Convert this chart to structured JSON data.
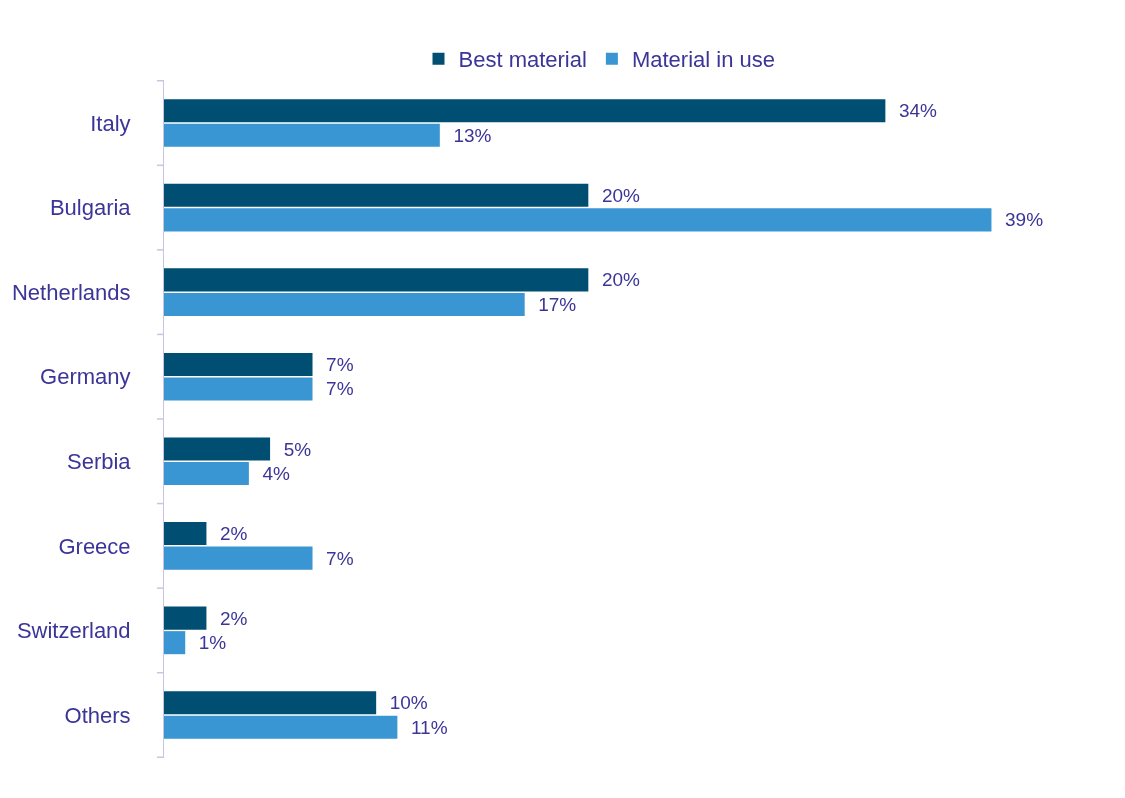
{
  "chart_data": {
    "type": "bar",
    "orientation": "horizontal",
    "categories": [
      "Italy",
      "Bulgaria",
      "Netherlands",
      "Germany",
      "Serbia",
      "Greece",
      "Switzerland",
      "Others"
    ],
    "series": [
      {
        "name": "Best material",
        "color": "#004e72",
        "values": [
          34,
          20,
          20,
          7,
          5,
          2,
          2,
          10
        ],
        "value_labels": [
          "34%",
          "20%",
          "20%",
          "7%",
          "5%",
          "2%",
          "2%",
          "10%"
        ]
      },
      {
        "name": "Material in use",
        "color": "#3a96d2",
        "values": [
          13,
          39,
          17,
          7,
          4,
          7,
          1,
          11
        ],
        "value_labels": [
          "13%",
          "39%",
          "17%",
          "7%",
          "4%",
          "7%",
          "1%",
          "11%"
        ]
      }
    ],
    "legend": "top"
  }
}
